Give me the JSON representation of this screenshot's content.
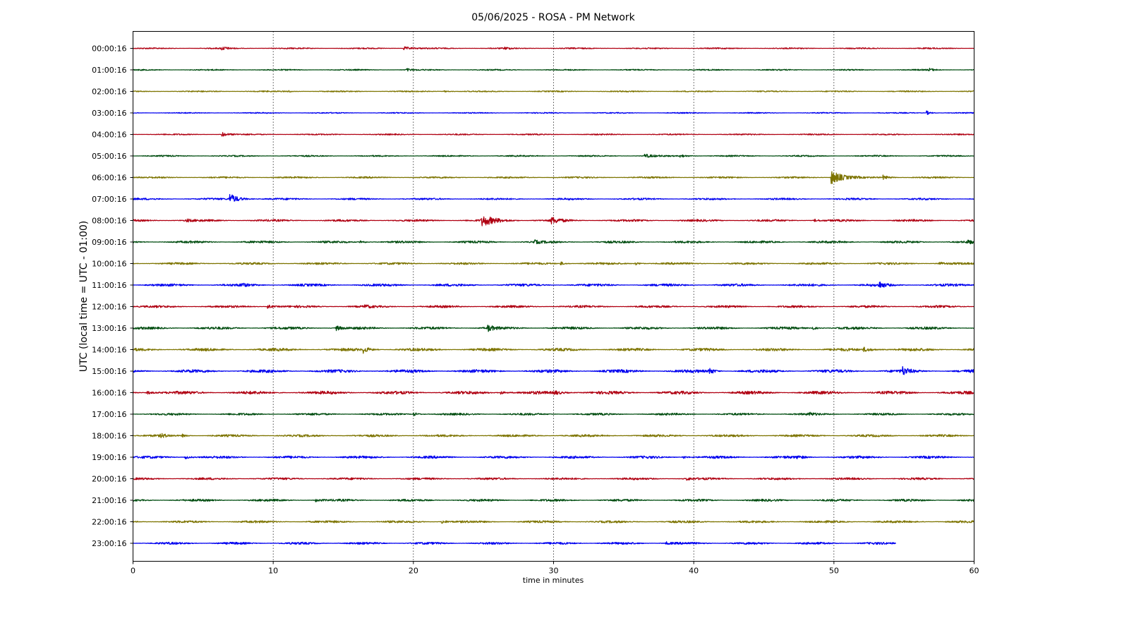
{
  "chart_data": {
    "type": "line",
    "title": "05/06/2025 - ROSA - PM Network",
    "xlabel": "time in minutes",
    "ylabel": "UTC (local time = UTC - 01:00)",
    "xlim": [
      0,
      60
    ],
    "x_ticks": [
      "0",
      "10",
      "20",
      "30",
      "40",
      "50",
      "60"
    ],
    "x_grid": [
      10,
      20,
      30,
      40,
      50
    ],
    "grid": true,
    "colors": [
      "#b00012",
      "#004d10",
      "#7d7400",
      "#0000ef"
    ],
    "series": [
      {
        "label": "00:00:16",
        "color": "#b00012",
        "end": 60,
        "noise": 0.9,
        "events": [
          {
            "t": 6.3,
            "amp": 2.5,
            "dur": 0.4
          },
          {
            "t": 19.3,
            "amp": 2.5,
            "dur": 0.6
          },
          {
            "t": 26.5,
            "amp": 1.5,
            "dur": 0.3
          }
        ]
      },
      {
        "label": "01:00:16",
        "color": "#004d10",
        "end": 60,
        "noise": 0.9,
        "events": [
          {
            "t": 19.5,
            "amp": 2,
            "dur": 0.3
          },
          {
            "t": 56.8,
            "amp": 2,
            "dur": 0.3
          }
        ]
      },
      {
        "label": "02:00:16",
        "color": "#7d7400",
        "end": 60,
        "noise": 0.9,
        "events": [
          {
            "t": 11,
            "amp": 1.5,
            "dur": 0.3
          },
          {
            "t": 22.2,
            "amp": 1.5,
            "dur": 0.3
          }
        ]
      },
      {
        "label": "03:00:16",
        "color": "#0000ef",
        "end": 60,
        "noise": 0.8,
        "events": [
          {
            "t": 56.6,
            "amp": 3,
            "dur": 0.3
          }
        ]
      },
      {
        "label": "04:00:16",
        "color": "#b00012",
        "end": 60,
        "noise": 0.9,
        "events": [
          {
            "t": 6.3,
            "amp": 3.5,
            "dur": 0.4
          }
        ]
      },
      {
        "label": "05:00:16",
        "color": "#004d10",
        "end": 60,
        "noise": 1.0,
        "events": [
          {
            "t": 36.5,
            "amp": 2.5,
            "dur": 0.5
          },
          {
            "t": 39,
            "amp": 2,
            "dur": 0.5
          }
        ]
      },
      {
        "label": "06:00:16",
        "color": "#7d7400",
        "end": 60,
        "noise": 1.2,
        "events": [
          {
            "t": 49.8,
            "amp": 11,
            "dur": 0.7
          },
          {
            "t": 53.5,
            "amp": 3,
            "dur": 0.4
          }
        ]
      },
      {
        "label": "07:00:16",
        "color": "#0000ef",
        "end": 60,
        "noise": 1.3,
        "events": [
          {
            "t": 6.9,
            "amp": 7,
            "dur": 0.6
          }
        ]
      },
      {
        "label": "08:00:16",
        "color": "#b00012",
        "end": 60,
        "noise": 1.5,
        "events": [
          {
            "t": 24.9,
            "amp": 7,
            "dur": 0.9
          },
          {
            "t": 29.8,
            "amp": 5,
            "dur": 0.5
          },
          {
            "t": 3.8,
            "amp": 2,
            "dur": 0.3
          },
          {
            "t": 48.6,
            "amp": 2,
            "dur": 0.3
          }
        ]
      },
      {
        "label": "09:00:16",
        "color": "#004d10",
        "end": 60,
        "noise": 1.6,
        "events": [
          {
            "t": 16.2,
            "amp": 2.5,
            "dur": 0.3
          },
          {
            "t": 28.6,
            "amp": 2.5,
            "dur": 0.3
          },
          {
            "t": 59.5,
            "amp": 2.5,
            "dur": 0.3
          }
        ]
      },
      {
        "label": "10:00:16",
        "color": "#7d7400",
        "end": 60,
        "noise": 1.5,
        "events": [
          {
            "t": 30.5,
            "amp": 2.5,
            "dur": 0.3
          },
          {
            "t": 35.8,
            "amp": 2.5,
            "dur": 0.3
          },
          {
            "t": 57.4,
            "amp": 3,
            "dur": 0.3
          }
        ]
      },
      {
        "label": "11:00:16",
        "color": "#0000ef",
        "end": 60,
        "noise": 1.8,
        "events": [
          {
            "t": 7.7,
            "amp": 2.5,
            "dur": 0.3
          },
          {
            "t": 53.2,
            "amp": 5,
            "dur": 0.3
          }
        ]
      },
      {
        "label": "12:00:16",
        "color": "#b00012",
        "end": 60,
        "noise": 1.6,
        "events": [
          {
            "t": 9.6,
            "amp": 3,
            "dur": 0.3
          },
          {
            "t": 16.5,
            "amp": 2,
            "dur": 0.3
          }
        ]
      },
      {
        "label": "13:00:16",
        "color": "#004d10",
        "end": 60,
        "noise": 1.8,
        "events": [
          {
            "t": 14.5,
            "amp": 3.5,
            "dur": 0.3
          },
          {
            "t": 25.3,
            "amp": 5,
            "dur": 0.3
          },
          {
            "t": 48.4,
            "amp": 3,
            "dur": 0.3
          }
        ]
      },
      {
        "label": "14:00:16",
        "color": "#7d7400",
        "end": 60,
        "noise": 2.0,
        "events": [
          {
            "t": 16.4,
            "amp": 4.5,
            "dur": 0.4
          },
          {
            "t": 52.1,
            "amp": 3,
            "dur": 0.6
          }
        ]
      },
      {
        "label": "15:00:16",
        "color": "#0000ef",
        "end": 60,
        "noise": 2.2,
        "events": [
          {
            "t": 41.1,
            "amp": 5,
            "dur": 0.3
          },
          {
            "t": 54.9,
            "amp": 5.5,
            "dur": 0.3
          }
        ]
      },
      {
        "label": "16:00:16",
        "color": "#b00012",
        "end": 60,
        "noise": 2.2,
        "events": [
          {
            "t": 1,
            "amp": 2.5,
            "dur": 0.4
          },
          {
            "t": 26.2,
            "amp": 2.5,
            "dur": 0.3
          },
          {
            "t": 30,
            "amp": 2.5,
            "dur": 0.6
          }
        ]
      },
      {
        "label": "17:00:16",
        "color": "#004d10",
        "end": 60,
        "noise": 1.5,
        "events": [
          {
            "t": 20,
            "amp": 3,
            "dur": 0.3
          },
          {
            "t": 48.2,
            "amp": 2,
            "dur": 0.3
          }
        ]
      },
      {
        "label": "18:00:16",
        "color": "#7d7400",
        "end": 60,
        "noise": 1.6,
        "events": [
          {
            "t": 2,
            "amp": 2.5,
            "dur": 0.3
          },
          {
            "t": 3.5,
            "amp": 2,
            "dur": 0.3
          }
        ]
      },
      {
        "label": "19:00:16",
        "color": "#0000ef",
        "end": 60,
        "noise": 1.8,
        "events": [
          {
            "t": 3.7,
            "amp": 3,
            "dur": 0.3
          },
          {
            "t": 39.2,
            "amp": 2.5,
            "dur": 0.3
          },
          {
            "t": 47.4,
            "amp": 2.5,
            "dur": 0.3
          }
        ]
      },
      {
        "label": "20:00:16",
        "color": "#b00012",
        "end": 60,
        "noise": 1.5,
        "events": [
          {
            "t": 39.5,
            "amp": 2,
            "dur": 0.3
          }
        ]
      },
      {
        "label": "21:00:16",
        "color": "#004d10",
        "end": 60,
        "noise": 1.6,
        "events": [
          {
            "t": 13,
            "amp": 2,
            "dur": 0.3
          }
        ]
      },
      {
        "label": "22:00:16",
        "color": "#7d7400",
        "end": 60,
        "noise": 1.6,
        "events": [
          {
            "t": 22,
            "amp": 3,
            "dur": 0.3
          }
        ]
      },
      {
        "label": "23:00:16",
        "color": "#0000ef",
        "end": 54.4,
        "noise": 1.6,
        "events": [
          {
            "t": 38,
            "amp": 2,
            "dur": 0.3
          }
        ]
      }
    ]
  }
}
